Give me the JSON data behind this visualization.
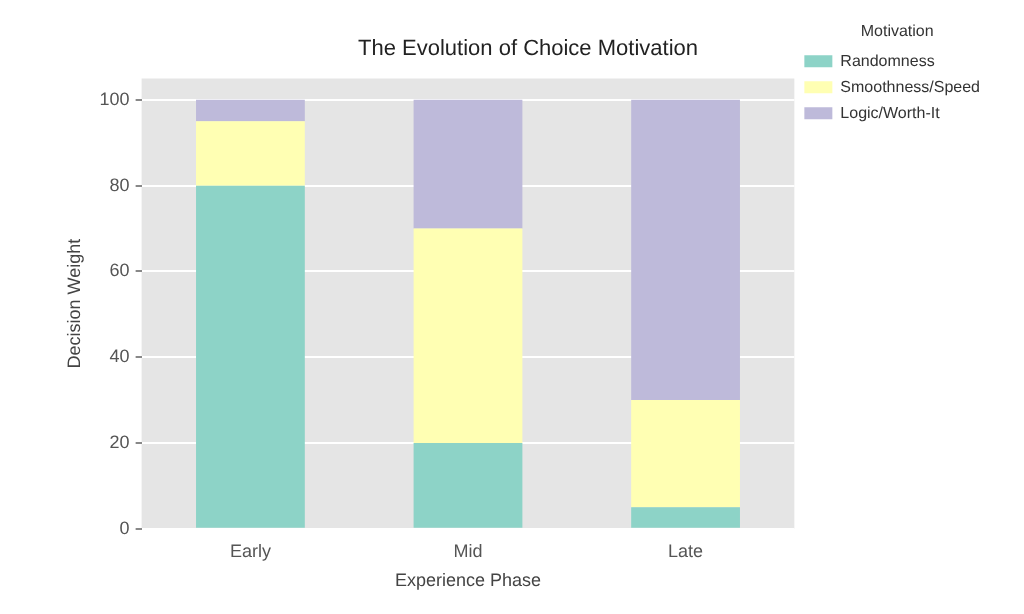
{
  "chart_data": {
    "type": "bar",
    "title": "The Evolution of Choice Motivation",
    "xlabel": "Experience Phase",
    "ylabel": "Decision Weight",
    "legend_title": "Motivation",
    "categories": [
      "Early",
      "Mid",
      "Late"
    ],
    "stacked": true,
    "series": [
      {
        "name": "Randomness",
        "color": "#8dd3c7",
        "values": [
          80,
          20,
          5
        ]
      },
      {
        "name": "Smoothness/Speed",
        "color": "#ffffb3",
        "values": [
          15,
          50,
          25
        ]
      },
      {
        "name": "Logic/Worth-It",
        "color": "#bebada",
        "values": [
          5,
          30,
          70
        ]
      }
    ],
    "ylim": [
      0,
      105
    ],
    "yticks": [
      0,
      20,
      40,
      60,
      80,
      100
    ],
    "grid": "y",
    "legend": "top right"
  }
}
